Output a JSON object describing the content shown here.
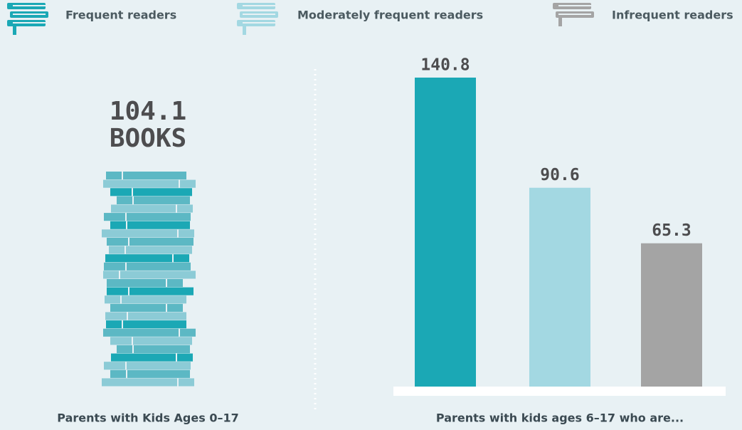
{
  "left_panel": {
    "value": 104.1,
    "unit": "BOOKS",
    "caption": "Parents with Kids Ages 0–17"
  },
  "chart_data": {
    "type": "bar",
    "categories": [
      "Frequent readers",
      "Moderately frequent readers",
      "Infrequent readers"
    ],
    "values": [
      140.8,
      90.6,
      65.3
    ],
    "colors": [
      "#1ba8b5",
      "#a3d8e2",
      "#a4a4a4"
    ],
    "caption": "Parents with kids ages 6–17 who are..."
  }
}
